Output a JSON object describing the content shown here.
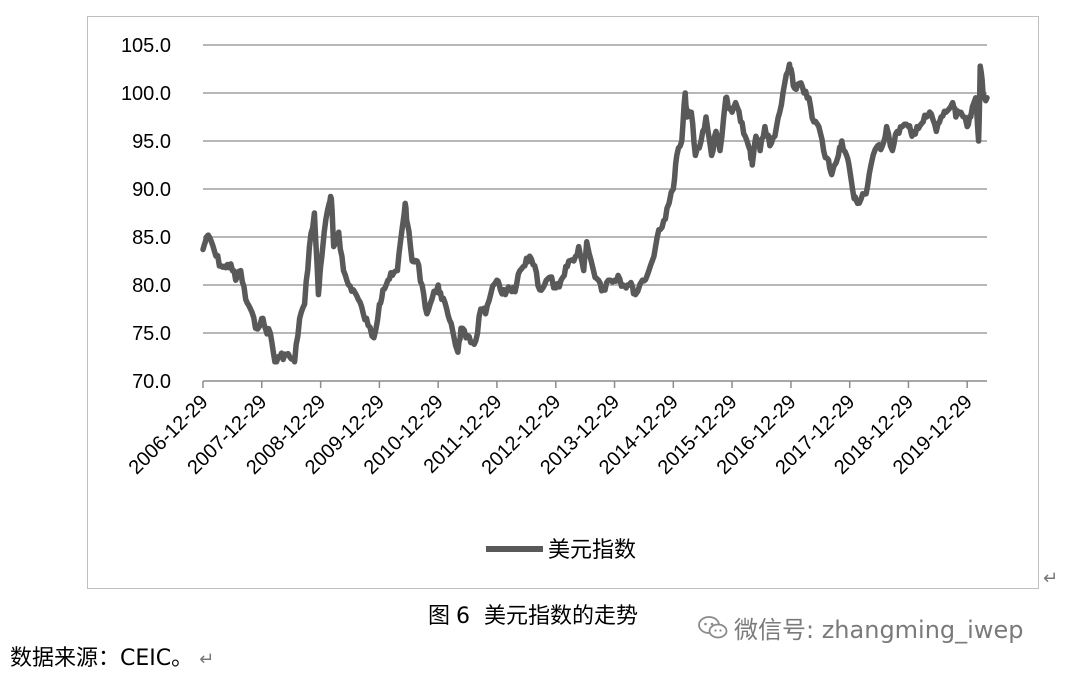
{
  "chart_data": {
    "type": "line",
    "title": "",
    "xlabel": "",
    "ylabel": "",
    "ylim": [
      70,
      105
    ],
    "y_ticks": [
      "105.0",
      "100.0",
      "95.0",
      "90.0",
      "85.0",
      "80.0",
      "75.0",
      "70.0"
    ],
    "x_ticks": [
      "2006-12-29",
      "2007-12-29",
      "2008-12-29",
      "2009-12-29",
      "2010-12-29",
      "2011-12-29",
      "2012-12-29",
      "2013-12-29",
      "2014-12-29",
      "2015-12-29",
      "2016-12-29",
      "2017-12-29",
      "2018-12-29",
      "2019-12-29"
    ],
    "x_start": "2006-12-29",
    "x_end": "2020-04-30",
    "grid": true,
    "legend_position": "bottom",
    "line_color": "#595959",
    "series": [
      {
        "name": "美元指数",
        "points": [
          [
            "2006-12-29",
            83.7
          ],
          [
            "2007-01-20",
            85.0
          ],
          [
            "2007-02-20",
            84.5
          ],
          [
            "2007-03-20",
            83.0
          ],
          [
            "2007-04-20",
            82.0
          ],
          [
            "2007-05-20",
            81.8
          ],
          [
            "2007-06-20",
            82.2
          ],
          [
            "2007-07-20",
            80.5
          ],
          [
            "2007-08-20",
            81.5
          ],
          [
            "2007-09-20",
            78.5
          ],
          [
            "2007-10-20",
            77.5
          ],
          [
            "2007-11-20",
            75.5
          ],
          [
            "2007-12-29",
            76.5
          ],
          [
            "2008-01-20",
            75.5
          ],
          [
            "2008-02-20",
            75.0
          ],
          [
            "2008-03-20",
            72.0
          ],
          [
            "2008-04-20",
            72.5
          ],
          [
            "2008-05-20",
            72.8
          ],
          [
            "2008-06-20",
            72.5
          ],
          [
            "2008-07-20",
            72.0
          ],
          [
            "2008-08-20",
            76.5
          ],
          [
            "2008-09-20",
            78.0
          ],
          [
            "2008-10-20",
            84.0
          ],
          [
            "2008-11-20",
            87.5
          ],
          [
            "2008-12-15",
            79.0
          ],
          [
            "2008-12-29",
            82.0
          ],
          [
            "2009-01-20",
            85.5
          ],
          [
            "2009-02-20",
            88.5
          ],
          [
            "2009-03-05",
            89.0
          ],
          [
            "2009-03-20",
            84.0
          ],
          [
            "2009-04-20",
            85.5
          ],
          [
            "2009-05-20",
            81.5
          ],
          [
            "2009-06-20",
            80.0
          ],
          [
            "2009-07-20",
            79.5
          ],
          [
            "2009-08-20",
            78.5
          ],
          [
            "2009-09-20",
            77.0
          ],
          [
            "2009-10-20",
            75.8
          ],
          [
            "2009-11-25",
            74.5
          ],
          [
            "2009-12-29",
            78.0
          ],
          [
            "2010-01-20",
            79.5
          ],
          [
            "2010-02-20",
            80.5
          ],
          [
            "2010-03-20",
            81.0
          ],
          [
            "2010-04-20",
            81.5
          ],
          [
            "2010-05-20",
            86.0
          ],
          [
            "2010-06-07",
            88.5
          ],
          [
            "2010-06-20",
            86.5
          ],
          [
            "2010-07-20",
            82.5
          ],
          [
            "2010-08-20",
            82.5
          ],
          [
            "2010-09-20",
            80.0
          ],
          [
            "2010-10-20",
            77.0
          ],
          [
            "2010-11-20",
            78.5
          ],
          [
            "2010-12-29",
            80.0
          ],
          [
            "2011-01-20",
            78.5
          ],
          [
            "2011-02-20",
            77.5
          ],
          [
            "2011-03-20",
            76.0
          ],
          [
            "2011-05-01",
            73.0
          ],
          [
            "2011-05-20",
            75.5
          ],
          [
            "2011-06-20",
            74.5
          ],
          [
            "2011-07-20",
            74.0
          ],
          [
            "2011-08-20",
            74.2
          ],
          [
            "2011-09-20",
            77.5
          ],
          [
            "2011-10-20",
            77.0
          ],
          [
            "2011-11-20",
            79.0
          ],
          [
            "2011-12-29",
            80.5
          ],
          [
            "2012-01-20",
            79.5
          ],
          [
            "2012-02-20",
            79.0
          ],
          [
            "2012-03-20",
            79.5
          ],
          [
            "2012-04-20",
            79.3
          ],
          [
            "2012-05-20",
            81.5
          ],
          [
            "2012-06-20",
            82.0
          ],
          [
            "2012-07-20",
            83.0
          ],
          [
            "2012-08-20",
            82.0
          ],
          [
            "2012-09-20",
            79.5
          ],
          [
            "2012-10-20",
            80.0
          ],
          [
            "2012-11-20",
            80.8
          ],
          [
            "2012-12-29",
            79.7
          ],
          [
            "2013-01-20",
            79.8
          ],
          [
            "2013-02-20",
            81.0
          ],
          [
            "2013-03-20",
            82.5
          ],
          [
            "2013-04-20",
            82.5
          ],
          [
            "2013-05-20",
            84.0
          ],
          [
            "2013-06-20",
            81.5
          ],
          [
            "2013-07-09",
            84.5
          ],
          [
            "2013-08-20",
            81.5
          ],
          [
            "2013-09-20",
            80.5
          ],
          [
            "2013-10-20",
            79.5
          ],
          [
            "2013-11-20",
            80.5
          ],
          [
            "2013-12-29",
            80.5
          ],
          [
            "2014-01-20",
            81.0
          ],
          [
            "2014-02-20",
            80.0
          ],
          [
            "2014-03-20",
            80.0
          ],
          [
            "2014-04-20",
            79.8
          ],
          [
            "2014-05-08",
            79.0
          ],
          [
            "2014-06-20",
            80.5
          ],
          [
            "2014-07-20",
            81.0
          ],
          [
            "2014-08-20",
            82.5
          ],
          [
            "2014-09-20",
            85.0
          ],
          [
            "2014-10-20",
            86.0
          ],
          [
            "2014-11-20",
            88.0
          ],
          [
            "2014-12-29",
            90.0
          ],
          [
            "2015-01-20",
            93.5
          ],
          [
            "2015-02-20",
            95.0
          ],
          [
            "2015-03-13",
            100.0
          ],
          [
            "2015-03-25",
            97.5
          ],
          [
            "2015-04-20",
            98.0
          ],
          [
            "2015-05-15",
            93.5
          ],
          [
            "2015-06-20",
            95.0
          ],
          [
            "2015-07-20",
            97.5
          ],
          [
            "2015-08-24",
            93.5
          ],
          [
            "2015-09-20",
            96.0
          ],
          [
            "2015-10-15",
            94.0
          ],
          [
            "2015-11-20",
            99.5
          ],
          [
            "2015-12-05",
            98.5
          ],
          [
            "2015-12-29",
            98.0
          ],
          [
            "2016-01-20",
            99.0
          ],
          [
            "2016-02-20",
            97.0
          ],
          [
            "2016-03-20",
            95.5
          ],
          [
            "2016-04-20",
            94.0
          ],
          [
            "2016-05-03",
            92.5
          ],
          [
            "2016-05-25",
            95.5
          ],
          [
            "2016-06-20",
            94.0
          ],
          [
            "2016-07-20",
            96.5
          ],
          [
            "2016-08-20",
            94.5
          ],
          [
            "2016-09-20",
            95.5
          ],
          [
            "2016-10-20",
            98.0
          ],
          [
            "2016-11-20",
            101.0
          ],
          [
            "2016-12-20",
            103.0
          ],
          [
            "2016-12-29",
            102.5
          ],
          [
            "2017-01-20",
            100.5
          ],
          [
            "2017-02-20",
            101.0
          ],
          [
            "2017-03-20",
            100.0
          ],
          [
            "2017-04-20",
            99.5
          ],
          [
            "2017-05-20",
            97.0
          ],
          [
            "2017-06-20",
            96.5
          ],
          [
            "2017-07-20",
            94.0
          ],
          [
            "2017-08-20",
            93.0
          ],
          [
            "2017-09-08",
            91.5
          ],
          [
            "2017-10-20",
            93.5
          ],
          [
            "2017-11-10",
            95.0
          ],
          [
            "2017-12-10",
            93.5
          ],
          [
            "2017-12-29",
            92.0
          ],
          [
            "2018-01-25",
            89.0
          ],
          [
            "2018-02-16",
            88.5
          ],
          [
            "2018-03-20",
            89.5
          ],
          [
            "2018-04-10",
            89.5
          ],
          [
            "2018-05-10",
            92.5
          ],
          [
            "2018-06-20",
            94.5
          ],
          [
            "2018-07-20",
            94.5
          ],
          [
            "2018-08-15",
            96.5
          ],
          [
            "2018-09-20",
            94.0
          ],
          [
            "2018-10-20",
            96.0
          ],
          [
            "2018-11-20",
            96.5
          ],
          [
            "2018-12-29",
            96.5
          ],
          [
            "2019-01-20",
            95.5
          ],
          [
            "2019-02-20",
            96.5
          ],
          [
            "2019-03-20",
            96.8
          ],
          [
            "2019-04-20",
            97.5
          ],
          [
            "2019-05-20",
            97.8
          ],
          [
            "2019-06-20",
            96.0
          ],
          [
            "2019-07-20",
            97.5
          ],
          [
            "2019-08-20",
            98.0
          ],
          [
            "2019-09-30",
            99.0
          ],
          [
            "2019-10-20",
            97.5
          ],
          [
            "2019-11-20",
            98.0
          ],
          [
            "2019-12-29",
            96.5
          ],
          [
            "2020-01-20",
            97.5
          ],
          [
            "2020-02-20",
            99.5
          ],
          [
            "2020-03-09",
            95.0
          ],
          [
            "2020-03-19",
            102.8
          ],
          [
            "2020-04-05",
            100.0
          ],
          [
            "2020-04-30",
            99.5
          ]
        ]
      }
    ]
  },
  "caption": {
    "label": "图",
    "number": "6",
    "text": "美元指数的走势"
  },
  "watermark": {
    "text": "微信号: zhangming_iwep",
    "icon": "wechat-icon"
  },
  "source_note": "数据来源：CEIC。",
  "return_mark": "↵"
}
